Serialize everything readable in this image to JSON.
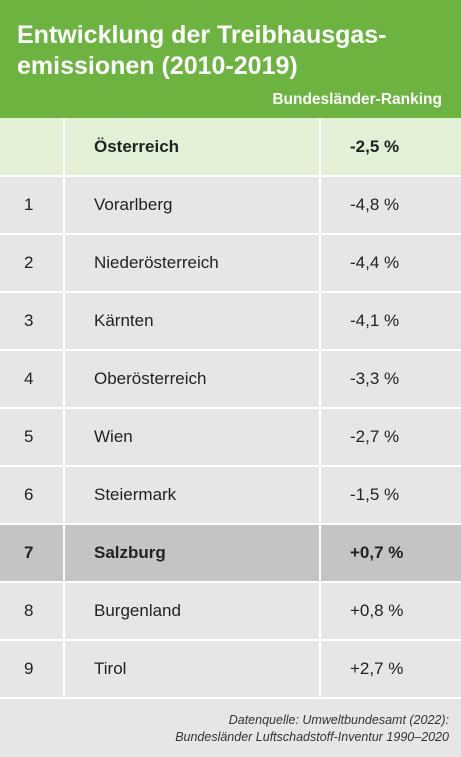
{
  "title": "Entwicklung der Treibhausgas-emissionen (2010-2019)",
  "subtitle": "Bundesländer-Ranking",
  "total": {
    "rank": "",
    "name": "Österreich",
    "value": "-2,5 %"
  },
  "rows": [
    {
      "rank": "1",
      "name": "Vorarlberg",
      "value": "-4,8 %"
    },
    {
      "rank": "2",
      "name": "Niederösterreich",
      "value": "-4,4 %"
    },
    {
      "rank": "3",
      "name": "Kärnten",
      "value": "-4,1 %"
    },
    {
      "rank": "4",
      "name": "Oberösterreich",
      "value": "-3,3 %"
    },
    {
      "rank": "5",
      "name": "Wien",
      "value": "-2,7 %"
    },
    {
      "rank": "6",
      "name": "Steiermark",
      "value": "-1,5 %"
    },
    {
      "rank": "7",
      "name": "Salzburg",
      "value": "+0,7 %",
      "highlight": true
    },
    {
      "rank": "8",
      "name": "Burgenland",
      "value": "+0,8 %"
    },
    {
      "rank": "9",
      "name": "Tirol",
      "value": "+2,7 %"
    }
  ],
  "source_line1": "Datenquelle: Umweltbundesamt (2022):",
  "source_line2": "Bundesländer Luftschadstoff-Inventur 1990–2020",
  "colors": {
    "header": "#6cb340",
    "total_row": "#e2f0d6",
    "highlight_row": "#c4c4c4",
    "body": "#e6e6e6"
  },
  "chart_data": {
    "type": "table",
    "title": "Entwicklung der Treibhausgas-emissionen (2010-2019)",
    "subtitle": "Bundesländer-Ranking",
    "columns": [
      "",
      "",
      ""
    ],
    "total": {
      "name": "Österreich",
      "value": -2.5
    },
    "categories": [
      "Vorarlberg",
      "Niederösterreich",
      "Kärnten",
      "Oberösterreich",
      "Wien",
      "Steiermark",
      "Salzburg",
      "Burgenland",
      "Tirol"
    ],
    "ranks": [
      1,
      2,
      3,
      4,
      5,
      6,
      7,
      8,
      9
    ],
    "values": [
      -4.8,
      -4.4,
      -4.1,
      -3.3,
      -2.7,
      -1.5,
      0.7,
      0.8,
      2.7
    ],
    "highlighted": "Salzburg"
  }
}
